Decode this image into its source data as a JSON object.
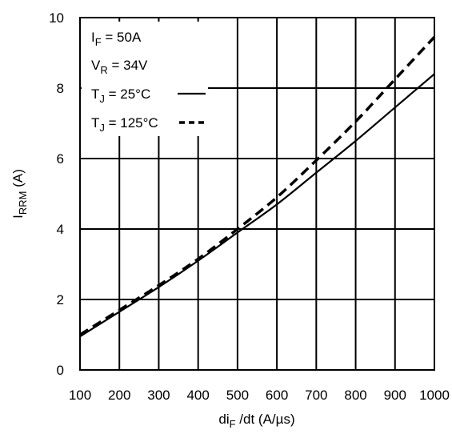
{
  "chart_data": {
    "type": "line",
    "title": "",
    "xlabel": {
      "base": "di",
      "sub": "F",
      "rest": " /dt (A/µs)"
    },
    "ylabel": {
      "base": "I",
      "sub": "RRM",
      "rest": " (A)"
    },
    "xlim": [
      100,
      1000
    ],
    "ylim": [
      0,
      10
    ],
    "xticks": [
      100,
      200,
      300,
      400,
      500,
      600,
      700,
      800,
      900,
      1000
    ],
    "yticks": [
      0,
      2,
      4,
      6,
      8,
      10
    ],
    "grid": true,
    "legend_position": "top-left",
    "conditions": [
      {
        "base": "I",
        "sub": "F",
        "rest": " = 50A"
      },
      {
        "base": "V",
        "sub": "R",
        "rest": " = 34V"
      }
    ],
    "series": [
      {
        "name": {
          "base": "T",
          "sub": "J",
          "rest": " = 25°C"
        },
        "style": "solid",
        "x": [
          100,
          200,
          300,
          400,
          500,
          600,
          700,
          800,
          900,
          1000
        ],
        "y": [
          0.95,
          1.65,
          2.35,
          3.1,
          3.9,
          4.7,
          5.6,
          6.5,
          7.45,
          8.4
        ]
      },
      {
        "name": {
          "base": "T",
          "sub": "J",
          "rest": " = 125°C"
        },
        "style": "dashed",
        "x": [
          100,
          200,
          300,
          400,
          500,
          600,
          700,
          800,
          900,
          1000
        ],
        "y": [
          1.0,
          1.7,
          2.4,
          3.15,
          4.0,
          4.9,
          5.95,
          7.05,
          8.25,
          9.45
        ]
      }
    ]
  }
}
